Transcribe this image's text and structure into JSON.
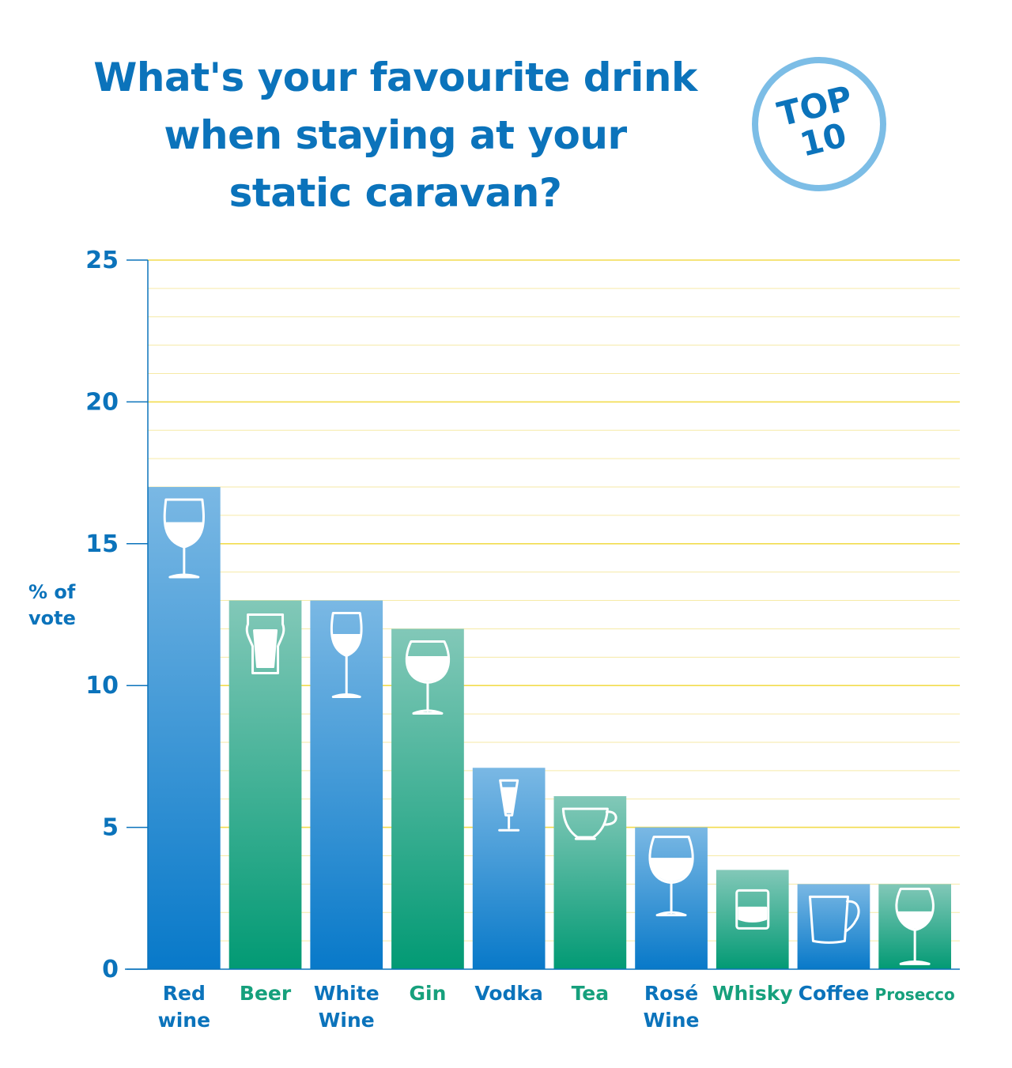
{
  "title_lines": [
    "What's your favourite drink",
    "when staying at your",
    "static caravan?"
  ],
  "badge_lines": [
    "TOP",
    "10"
  ],
  "chart_data": {
    "type": "bar",
    "title": "What's your favourite drink when staying at your static caravan?",
    "ylabel_lines": [
      "% of",
      "vote"
    ],
    "ylim": [
      0,
      25
    ],
    "yticks": [
      0,
      5,
      10,
      15,
      20,
      25
    ],
    "grid": true,
    "categories": [
      "Red wine",
      "Beer",
      "White Wine",
      "Gin",
      "Vodka",
      "Tea",
      "Rosé Wine",
      "Whisky",
      "Coffee",
      "Prosecco"
    ],
    "category_label_lines": [
      [
        "Red",
        "wine"
      ],
      [
        "Beer"
      ],
      [
        "White",
        "Wine"
      ],
      [
        "Gin"
      ],
      [
        "Vodka"
      ],
      [
        "Tea"
      ],
      [
        "Rosé",
        "Wine"
      ],
      [
        "Whisky"
      ],
      [
        "Coffee"
      ],
      [
        "Prosecco"
      ]
    ],
    "values": [
      17,
      13,
      13,
      12,
      7.1,
      6.1,
      5,
      3.5,
      3,
      3
    ],
    "bar_colors": [
      "blue",
      "green",
      "blue",
      "green",
      "blue",
      "green",
      "blue",
      "green",
      "blue",
      "green"
    ],
    "icons": [
      "red-wine-glass-icon",
      "beer-glass-icon",
      "white-wine-glass-icon",
      "gin-glass-icon",
      "vodka-glass-icon",
      "tea-cup-icon",
      "rose-wine-glass-icon",
      "whisky-tumbler-icon",
      "coffee-mug-icon",
      "prosecco-glass-icon"
    ]
  },
  "colors": {
    "title": "#0b73bb",
    "badge_ring": "#7cbde6",
    "blue_label": "#0b73bb",
    "green_label": "#16a07c",
    "blue_top": "#7ab8e4",
    "blue_bottom": "#0879c9",
    "green_top": "#82c8b8",
    "green_bottom": "#029a74",
    "grid_major": "#f2dc4d",
    "grid_minor": "#f6eaa6",
    "axis": "#0b73bb"
  }
}
